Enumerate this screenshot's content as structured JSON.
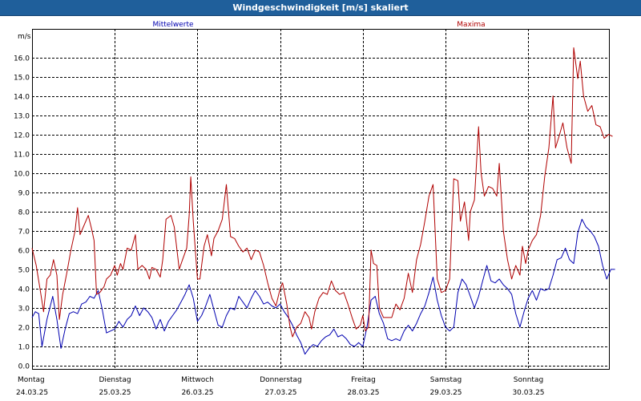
{
  "window": {
    "title": "Windgeschwindigkeit [m/s] skaliert"
  },
  "chart_data": {
    "type": "line",
    "ylabel": "m/s",
    "ylim": [
      0,
      17
    ],
    "yticks": [
      "0.0",
      "1.0",
      "2.0",
      "3.0",
      "4.0",
      "5.0",
      "6.0",
      "7.0",
      "8.0",
      "9.0",
      "10.0",
      "11.0",
      "12.0",
      "13.0",
      "14.0",
      "15.0",
      "16.0"
    ],
    "x_days": [
      {
        "day": "Montag",
        "date": "24.03.25"
      },
      {
        "day": "Dienstag",
        "date": "25.03.25"
      },
      {
        "day": "Mittwoch",
        "date": "26.03.25"
      },
      {
        "day": "Donnerstag",
        "date": "27.03.25"
      },
      {
        "day": "Freitag",
        "date": "28.03.25"
      },
      {
        "day": "Samstag",
        "date": "29.03.25"
      },
      {
        "day": "Sonntag",
        "date": "30.03.25"
      }
    ],
    "grid": true,
    "series": [
      {
        "name": "Mittelwerte",
        "color": "#0000b0",
        "points": [
          [
            0,
            2.5
          ],
          [
            0.04,
            2.8
          ],
          [
            0.08,
            2.7
          ],
          [
            0.12,
            1.0
          ],
          [
            0.18,
            2.4
          ],
          [
            0.25,
            3.6
          ],
          [
            0.3,
            2.4
          ],
          [
            0.35,
            0.9
          ],
          [
            0.4,
            1.9
          ],
          [
            0.45,
            2.7
          ],
          [
            0.5,
            2.8
          ],
          [
            0.55,
            2.7
          ],
          [
            0.6,
            3.2
          ],
          [
            0.65,
            3.3
          ],
          [
            0.7,
            3.6
          ],
          [
            0.75,
            3.5
          ],
          [
            0.8,
            3.9
          ],
          [
            0.85,
            2.9
          ],
          [
            0.9,
            1.7
          ],
          [
            0.95,
            1.8
          ],
          [
            1.0,
            1.9
          ],
          [
            1.05,
            2.3
          ],
          [
            1.1,
            2.0
          ],
          [
            1.15,
            2.4
          ],
          [
            1.2,
            2.6
          ],
          [
            1.25,
            3.1
          ],
          [
            1.3,
            2.6
          ],
          [
            1.35,
            3.0
          ],
          [
            1.4,
            2.8
          ],
          [
            1.45,
            2.5
          ],
          [
            1.5,
            1.9
          ],
          [
            1.55,
            2.4
          ],
          [
            1.6,
            1.8
          ],
          [
            1.65,
            2.3
          ],
          [
            1.7,
            2.6
          ],
          [
            1.75,
            2.9
          ],
          [
            1.8,
            3.3
          ],
          [
            1.85,
            3.7
          ],
          [
            1.9,
            4.2
          ],
          [
            1.95,
            3.5
          ],
          [
            2.0,
            2.3
          ],
          [
            2.05,
            2.6
          ],
          [
            2.1,
            3.1
          ],
          [
            2.15,
            3.7
          ],
          [
            2.2,
            2.9
          ],
          [
            2.25,
            2.1
          ],
          [
            2.3,
            2.0
          ],
          [
            2.35,
            2.6
          ],
          [
            2.4,
            3.0
          ],
          [
            2.45,
            2.9
          ],
          [
            2.5,
            3.6
          ],
          [
            2.55,
            3.3
          ],
          [
            2.6,
            3.0
          ],
          [
            2.65,
            3.5
          ],
          [
            2.7,
            3.9
          ],
          [
            2.75,
            3.6
          ],
          [
            2.8,
            3.2
          ],
          [
            2.85,
            3.3
          ],
          [
            2.9,
            3.1
          ],
          [
            2.95,
            3.0
          ],
          [
            3.0,
            3.2
          ],
          [
            3.05,
            2.8
          ],
          [
            3.1,
            2.5
          ],
          [
            3.15,
            2.1
          ],
          [
            3.2,
            1.6
          ],
          [
            3.25,
            1.2
          ],
          [
            3.3,
            0.6
          ],
          [
            3.35,
            0.9
          ],
          [
            3.4,
            1.1
          ],
          [
            3.45,
            1.0
          ],
          [
            3.5,
            1.3
          ],
          [
            3.55,
            1.5
          ],
          [
            3.6,
            1.6
          ],
          [
            3.65,
            1.9
          ],
          [
            3.7,
            1.5
          ],
          [
            3.75,
            1.6
          ],
          [
            3.8,
            1.4
          ],
          [
            3.85,
            1.1
          ],
          [
            3.9,
            1.0
          ],
          [
            3.95,
            1.2
          ],
          [
            4.0,
            1.0
          ],
          [
            4.05,
            2.0
          ],
          [
            4.1,
            3.4
          ],
          [
            4.15,
            3.6
          ],
          [
            4.2,
            2.7
          ],
          [
            4.25,
            2.2
          ],
          [
            4.3,
            1.4
          ],
          [
            4.35,
            1.3
          ],
          [
            4.4,
            1.4
          ],
          [
            4.45,
            1.3
          ],
          [
            4.5,
            1.8
          ],
          [
            4.55,
            2.1
          ],
          [
            4.6,
            1.8
          ],
          [
            4.65,
            2.2
          ],
          [
            4.7,
            2.7
          ],
          [
            4.75,
            3.1
          ],
          [
            4.8,
            3.8
          ],
          [
            4.85,
            4.6
          ],
          [
            4.9,
            3.4
          ],
          [
            4.95,
            2.6
          ],
          [
            5.0,
            2.0
          ],
          [
            5.05,
            1.8
          ],
          [
            5.1,
            2.0
          ],
          [
            5.15,
            3.8
          ],
          [
            5.2,
            4.5
          ],
          [
            5.25,
            4.2
          ],
          [
            5.3,
            3.6
          ],
          [
            5.35,
            3.0
          ],
          [
            5.4,
            3.6
          ],
          [
            5.45,
            4.4
          ],
          [
            5.5,
            5.2
          ],
          [
            5.55,
            4.4
          ],
          [
            5.6,
            4.3
          ],
          [
            5.65,
            4.5
          ],
          [
            5.7,
            4.2
          ],
          [
            5.75,
            4.0
          ],
          [
            5.8,
            3.7
          ],
          [
            5.85,
            2.7
          ],
          [
            5.9,
            2.0
          ],
          [
            5.95,
            2.8
          ],
          [
            6.0,
            3.5
          ],
          [
            6.05,
            3.9
          ],
          [
            6.1,
            3.4
          ],
          [
            6.15,
            4.0
          ],
          [
            6.2,
            3.9
          ],
          [
            6.25,
            4.0
          ],
          [
            6.3,
            4.7
          ],
          [
            6.35,
            5.5
          ],
          [
            6.4,
            5.6
          ],
          [
            6.45,
            6.1
          ],
          [
            6.5,
            5.5
          ],
          [
            6.55,
            5.3
          ],
          [
            6.6,
            6.9
          ],
          [
            6.65,
            7.6
          ],
          [
            6.7,
            7.2
          ],
          [
            6.75,
            7.0
          ],
          [
            6.8,
            6.7
          ],
          [
            6.85,
            6.2
          ],
          [
            6.9,
            5.2
          ],
          [
            6.95,
            4.5
          ],
          [
            7.0,
            5.0
          ],
          [
            7.05,
            5.0
          ]
        ]
      },
      {
        "name": "Maxima",
        "color": "#b00000",
        "points": [
          [
            0,
            6.1
          ],
          [
            0.05,
            5.2
          ],
          [
            0.1,
            3.9
          ],
          [
            0.14,
            2.8
          ],
          [
            0.18,
            4.5
          ],
          [
            0.22,
            4.7
          ],
          [
            0.26,
            5.5
          ],
          [
            0.3,
            4.7
          ],
          [
            0.33,
            2.4
          ],
          [
            0.37,
            3.7
          ],
          [
            0.42,
            4.8
          ],
          [
            0.47,
            6.0
          ],
          [
            0.52,
            7.0
          ],
          [
            0.55,
            8.2
          ],
          [
            0.58,
            6.8
          ],
          [
            0.62,
            7.2
          ],
          [
            0.68,
            7.8
          ],
          [
            0.72,
            7.1
          ],
          [
            0.75,
            6.5
          ],
          [
            0.78,
            3.7
          ],
          [
            0.82,
            3.8
          ],
          [
            0.87,
            4.1
          ],
          [
            0.9,
            4.5
          ],
          [
            0.95,
            4.7
          ],
          [
            1.0,
            5.2
          ],
          [
            1.03,
            4.7
          ],
          [
            1.07,
            5.3
          ],
          [
            1.1,
            5.0
          ],
          [
            1.15,
            6.1
          ],
          [
            1.2,
            6.0
          ],
          [
            1.25,
            6.8
          ],
          [
            1.28,
            5.0
          ],
          [
            1.33,
            5.2
          ],
          [
            1.38,
            5.0
          ],
          [
            1.42,
            4.5
          ],
          [
            1.45,
            5.1
          ],
          [
            1.5,
            5.0
          ],
          [
            1.55,
            4.6
          ],
          [
            1.58,
            5.5
          ],
          [
            1.62,
            7.6
          ],
          [
            1.68,
            7.8
          ],
          [
            1.72,
            7.2
          ],
          [
            1.78,
            5.0
          ],
          [
            1.82,
            5.5
          ],
          [
            1.87,
            6.1
          ],
          [
            1.9,
            7.8
          ],
          [
            1.92,
            9.8
          ],
          [
            1.95,
            7.5
          ],
          [
            2.0,
            4.5
          ],
          [
            2.03,
            4.5
          ],
          [
            2.08,
            6.2
          ],
          [
            2.12,
            6.8
          ],
          [
            2.17,
            5.7
          ],
          [
            2.2,
            6.6
          ],
          [
            2.25,
            7.0
          ],
          [
            2.3,
            7.6
          ],
          [
            2.35,
            9.4
          ],
          [
            2.4,
            6.7
          ],
          [
            2.45,
            6.6
          ],
          [
            2.5,
            6.2
          ],
          [
            2.55,
            5.9
          ],
          [
            2.6,
            6.1
          ],
          [
            2.65,
            5.5
          ],
          [
            2.7,
            6.0
          ],
          [
            2.75,
            5.9
          ],
          [
            2.8,
            5.2
          ],
          [
            2.85,
            4.3
          ],
          [
            2.9,
            3.5
          ],
          [
            2.95,
            3.1
          ],
          [
            3.0,
            4.0
          ],
          [
            3.03,
            4.3
          ],
          [
            3.08,
            3.2
          ],
          [
            3.12,
            2.0
          ],
          [
            3.15,
            1.5
          ],
          [
            3.2,
            2.0
          ],
          [
            3.25,
            2.2
          ],
          [
            3.3,
            2.8
          ],
          [
            3.35,
            2.5
          ],
          [
            3.38,
            1.9
          ],
          [
            3.42,
            2.8
          ],
          [
            3.47,
            3.5
          ],
          [
            3.52,
            3.8
          ],
          [
            3.57,
            3.7
          ],
          [
            3.62,
            4.4
          ],
          [
            3.67,
            3.9
          ],
          [
            3.72,
            3.7
          ],
          [
            3.77,
            3.8
          ],
          [
            3.82,
            3.2
          ],
          [
            3.87,
            2.5
          ],
          [
            3.92,
            1.9
          ],
          [
            3.97,
            2.1
          ],
          [
            4.0,
            2.6
          ],
          [
            4.03,
            1.8
          ],
          [
            4.07,
            2.0
          ],
          [
            4.1,
            6.0
          ],
          [
            4.13,
            5.3
          ],
          [
            4.17,
            5.2
          ],
          [
            4.2,
            3.0
          ],
          [
            4.25,
            2.5
          ],
          [
            4.3,
            2.5
          ],
          [
            4.35,
            2.5
          ],
          [
            4.4,
            3.2
          ],
          [
            4.45,
            2.9
          ],
          [
            4.5,
            3.5
          ],
          [
            4.55,
            4.8
          ],
          [
            4.6,
            3.8
          ],
          [
            4.65,
            5.5
          ],
          [
            4.7,
            6.3
          ],
          [
            4.75,
            7.5
          ],
          [
            4.8,
            8.8
          ],
          [
            4.85,
            9.4
          ],
          [
            4.9,
            4.5
          ],
          [
            4.95,
            3.8
          ],
          [
            5.0,
            3.9
          ],
          [
            5.05,
            4.5
          ],
          [
            5.1,
            9.7
          ],
          [
            5.15,
            9.6
          ],
          [
            5.18,
            7.5
          ],
          [
            5.23,
            8.5
          ],
          [
            5.28,
            6.5
          ],
          [
            5.3,
            8.0
          ],
          [
            5.35,
            8.6
          ],
          [
            5.4,
            12.4
          ],
          [
            5.43,
            10.0
          ],
          [
            5.47,
            8.8
          ],
          [
            5.52,
            9.3
          ],
          [
            5.57,
            9.2
          ],
          [
            5.62,
            8.8
          ],
          [
            5.65,
            10.5
          ],
          [
            5.7,
            7.0
          ],
          [
            5.75,
            5.5
          ],
          [
            5.8,
            4.5
          ],
          [
            5.85,
            5.2
          ],
          [
            5.9,
            4.7
          ],
          [
            5.93,
            6.2
          ],
          [
            5.97,
            5.3
          ],
          [
            6.0,
            6.0
          ],
          [
            6.05,
            6.5
          ],
          [
            6.1,
            6.8
          ],
          [
            6.15,
            7.8
          ],
          [
            6.2,
            9.8
          ],
          [
            6.25,
            11.3
          ],
          [
            6.3,
            14.0
          ],
          [
            6.33,
            11.3
          ],
          [
            6.38,
            12.0
          ],
          [
            6.42,
            12.6
          ],
          [
            6.47,
            11.3
          ],
          [
            6.52,
            10.5
          ],
          [
            6.55,
            16.5
          ],
          [
            6.6,
            14.9
          ],
          [
            6.63,
            15.8
          ],
          [
            6.67,
            14.0
          ],
          [
            6.72,
            13.2
          ],
          [
            6.77,
            13.5
          ],
          [
            6.82,
            12.5
          ],
          [
            6.87,
            12.4
          ],
          [
            6.92,
            11.8
          ],
          [
            6.97,
            12.0
          ],
          [
            7.02,
            11.9
          ]
        ]
      }
    ]
  }
}
